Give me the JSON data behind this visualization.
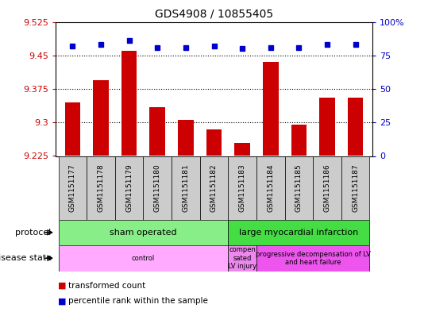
{
  "title": "GDS4908 / 10855405",
  "samples": [
    "GSM1151177",
    "GSM1151178",
    "GSM1151179",
    "GSM1151180",
    "GSM1151181",
    "GSM1151182",
    "GSM1151183",
    "GSM1151184",
    "GSM1151185",
    "GSM1151186",
    "GSM1151187"
  ],
  "transformed_count": [
    9.345,
    9.395,
    9.46,
    9.335,
    9.305,
    9.285,
    9.255,
    9.435,
    9.295,
    9.355,
    9.355
  ],
  "percentile_rank": [
    82,
    83,
    86,
    81,
    81,
    82,
    80,
    81,
    81,
    83,
    83
  ],
  "ylim_left": [
    9.225,
    9.525
  ],
  "ylim_right": [
    0,
    100
  ],
  "yticks_left": [
    9.225,
    9.3,
    9.375,
    9.45,
    9.525
  ],
  "yticks_right": [
    0,
    25,
    50,
    75,
    100
  ],
  "ytick_labels_left": [
    "9.225",
    "9.3",
    "9.375",
    "9.45",
    "9.525"
  ],
  "ytick_labels_right": [
    "0",
    "25",
    "50",
    "75",
    "100%"
  ],
  "bar_color": "#cc0000",
  "dot_color": "#0000cc",
  "bar_bottom": 9.225,
  "protocol_groups": [
    {
      "label": "sham operated",
      "start": 0,
      "end": 6,
      "color": "#88ee88"
    },
    {
      "label": "large myocardial infarction",
      "start": 6,
      "end": 11,
      "color": "#44dd44"
    }
  ],
  "disease_groups": [
    {
      "label": "control",
      "start": 0,
      "end": 6,
      "color": "#ffaaff"
    },
    {
      "label": "compen\nsated\nLV injury",
      "start": 6,
      "end": 7,
      "color": "#ee88ee"
    },
    {
      "label": "progressive decompensation of LV\nand heart failure",
      "start": 7,
      "end": 11,
      "color": "#ee55ee"
    }
  ],
  "legend_items": [
    {
      "color": "#cc0000",
      "label": "transformed count"
    },
    {
      "color": "#0000cc",
      "label": "percentile rank within the sample"
    }
  ],
  "label_color_left": "#cc0000",
  "label_color_right": "#0000cc",
  "sample_box_color": "#cccccc",
  "dotgrid_yticks": [
    9.3,
    9.375,
    9.45
  ]
}
